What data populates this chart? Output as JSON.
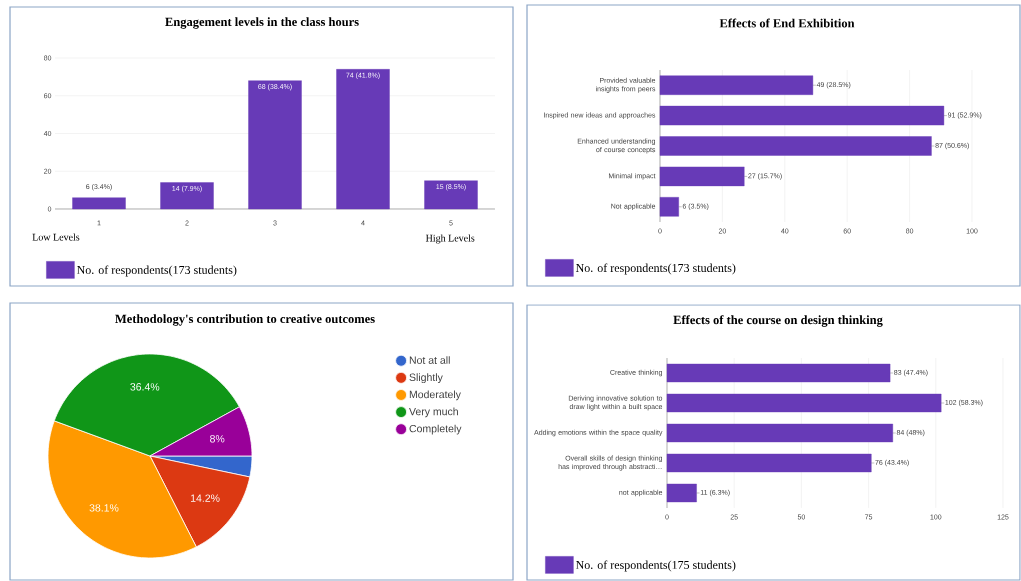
{
  "chart_data": [
    {
      "type": "bar",
      "title": "Engagement levels in the class hours",
      "categories": [
        "1",
        "2",
        "3",
        "4",
        "5"
      ],
      "ylim": [
        0,
        80
      ],
      "yticks": [
        0,
        20,
        40,
        60,
        80
      ],
      "grid": "y",
      "legend": "bottom",
      "annotations": [
        "Low Levels",
        "High Levels"
      ],
      "series": [
        {
          "name": "No. of respondents(173 students)",
          "color": "#673ab7",
          "values": [
            6,
            14,
            68,
            74,
            15
          ],
          "value_labels": [
            "6 (3.4%)",
            "14 (7.9%)",
            "68 (38.4%)",
            "74 (41.8%)",
            "15 (8.5%)"
          ]
        }
      ]
    },
    {
      "type": "bar",
      "orientation": "horizontal",
      "title": "Effects of End Exhibition",
      "categories": [
        "Provided valuable insights from peers",
        "Inspired new ideas and approaches",
        "Enhanced understanding of course concepts",
        "Minimal impact",
        "Not applicable"
      ],
      "xlim": [
        0,
        100
      ],
      "xticks": [
        0,
        20,
        40,
        60,
        80,
        100
      ],
      "grid": "x",
      "legend": "bottom",
      "series": [
        {
          "name": "No. of respondents(173 students)",
          "color": "#673ab7",
          "values": [
            49,
            91,
            87,
            27,
            6
          ],
          "value_labels": [
            "49 (28.5%)",
            "91 (52.9%)",
            "87 (50.6%)",
            "27 (15.7%)",
            "6 (3.5%)"
          ]
        }
      ]
    },
    {
      "type": "pie",
      "title": "Methodology's contribution to creative outcomes",
      "categories": [
        "Not at all",
        "Slightly",
        "Moderately",
        "Very much",
        "Completely"
      ],
      "values": [
        3.3,
        14.2,
        38.1,
        36.4,
        8
      ],
      "value_labels": [
        null,
        "14.2%",
        "38.1%",
        "36.4%",
        "8%"
      ],
      "colors": [
        "#3366cc",
        "#dc3912",
        "#ff9900",
        "#109618",
        "#990099"
      ],
      "legend": "right"
    },
    {
      "type": "bar",
      "orientation": "horizontal",
      "title": "Effects of the course on design thinking",
      "categories": [
        "Creative thinking",
        "Deriving innovative solution to draw light within a built space",
        "Adding emotions within the space quality",
        "Overall skills of design thinking has improved through abstracti…",
        "not applicable"
      ],
      "xlim": [
        0,
        125
      ],
      "xticks": [
        0,
        25,
        50,
        75,
        100,
        125
      ],
      "grid": "x",
      "legend": "bottom",
      "series": [
        {
          "name": "No. of respondents(175 students)",
          "color": "#673ab7",
          "values": [
            83,
            102,
            84,
            76,
            11
          ],
          "value_labels": [
            "83 (47.4%)",
            "102 (58.3%)",
            "84 (48%)",
            "76 (43.4%)",
            "11 (6.3%)"
          ]
        }
      ]
    }
  ]
}
